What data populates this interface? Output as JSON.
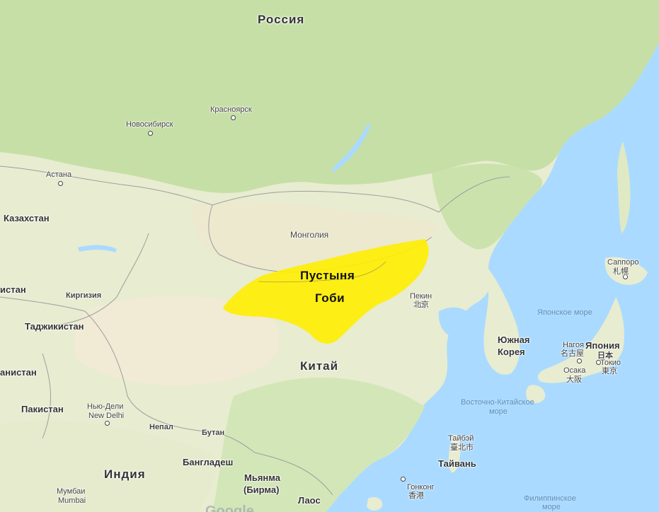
{
  "map": {
    "colors": {
      "water": "#aadaff",
      "land": "#e9eccf",
      "forest": "#c7dfa8",
      "desert": "#f3ead0",
      "highlight": "#ffee00",
      "border": "#9e9e9e"
    },
    "highlight": {
      "label_line1": "Пустыня",
      "label_line2": "Гоби"
    },
    "countries": {
      "russia": "Россия",
      "kazakhstan": "Казахстан",
      "mongolia": "Монголия",
      "china": "Китай",
      "india": "Индия",
      "kyrgyzstan": "Киргизия",
      "tajikistan": "Таджикистан",
      "uzbekistan_partial": "истан",
      "afghanistan_partial": "анистан",
      "pakistan": "Пакистан",
      "nepal": "Непал",
      "bhutan": "Бутан",
      "bangladesh": "Бангладеш",
      "myanmar_line1": "Мьянма",
      "myanmar_line2": "(Бирма)",
      "laos": "Лаос",
      "south_korea_line1": "Южная",
      "south_korea_line2": "Корея",
      "japan_line1": "Япония",
      "japan_line2": "日本",
      "taiwan": "Тайвань"
    },
    "cities": {
      "krasnoyarsk": "Красноярск",
      "novosibirsk": "Новосибирск",
      "astana": "Астана",
      "beijing_ru": "Пекин",
      "beijing_zh": "北京",
      "sapporo_ru": "Саппоро",
      "sapporo_ja": "札幌",
      "nagoya_ru": "Нагоя",
      "nagoya_ja": "名古屋",
      "osaka_ru": "Осака",
      "osaka_ja": "大阪",
      "tokyo_ru": "Токио",
      "tokyo_ja": "東京",
      "newdelhi_ru": "Нью-Дели",
      "newdelhi_en": "New Delhi",
      "mumbai_ru": "Мумбаи",
      "mumbai_en": "Mumbai",
      "taipei_ru": "Тайбэй",
      "taipei_zh": "臺北市",
      "hongkong_ru": "Гонконг",
      "hongkong_zh": "香港"
    },
    "seas": {
      "japan_sea": "Японское море",
      "east_china_sea_line1": "Восточно-Китайское",
      "east_china_sea_line2": "море",
      "philippine_sea_line1": "Филиппинское",
      "philippine_sea_line2": "море"
    },
    "attribution": "Google"
  }
}
